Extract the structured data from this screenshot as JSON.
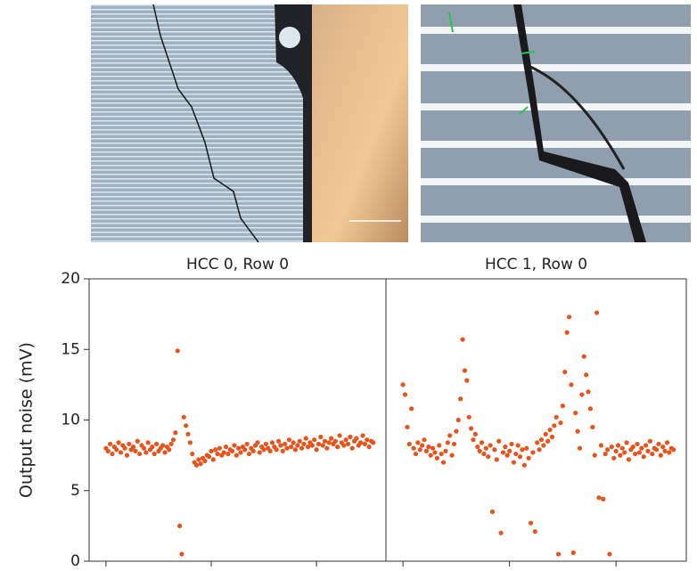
{
  "chart_data": [
    {
      "type": "scatter",
      "title": "HCC 0, Row 0",
      "ylabel": "Output noise (mV)",
      "color": "#e8531b",
      "xlim": [
        -8,
        133
      ],
      "xticks": [
        0,
        50,
        100
      ],
      "ylim": [
        0,
        20
      ],
      "yticks": [
        0,
        5,
        10,
        15,
        20
      ],
      "values": [
        8.0,
        7.8,
        8.3,
        7.6,
        8.1,
        7.9,
        8.4,
        7.7,
        8.2,
        8.0,
        7.5,
        8.3,
        7.9,
        8.1,
        7.8,
        8.5,
        7.6,
        8.2,
        8.0,
        7.7,
        8.4,
        7.9,
        8.1,
        7.6,
        8.3,
        7.8,
        8.0,
        8.2,
        7.7,
        8.1,
        7.9,
        8.3,
        8.6,
        9.1,
        14.9,
        2.5,
        0.5,
        10.2,
        9.6,
        9.0,
        8.4,
        7.6,
        7.0,
        6.8,
        7.2,
        6.9,
        7.3,
        7.1,
        7.5,
        7.4,
        7.8,
        7.2,
        7.9,
        7.6,
        8.0,
        7.5,
        7.7,
        8.1,
        7.6,
        7.9,
        7.8,
        8.2,
        7.5,
        8.0,
        7.7,
        8.1,
        7.9,
        8.3,
        7.6,
        8.0,
        7.8,
        8.2,
        8.4,
        7.7,
        8.1,
        7.9,
        8.3,
        8.0,
        7.8,
        8.4,
        8.1,
        7.9,
        8.5,
        8.2,
        7.8,
        8.3,
        8.0,
        8.6,
        8.1,
        8.4,
        7.9,
        8.2,
        8.5,
        8.0,
        8.3,
        8.7,
        8.1,
        8.4,
        8.2,
        8.6,
        7.9,
        8.3,
        8.8,
        8.2,
        8.5,
        8.0,
        8.4,
        8.7,
        8.3,
        8.5,
        8.1,
        8.9,
        8.4,
        8.2,
        8.6,
        8.3,
        8.8,
        8.0,
        8.5,
        8.7,
        8.2,
        8.4,
        8.9,
        8.3,
        8.6,
        8.1,
        8.5,
        8.4
      ]
    },
    {
      "type": "scatter",
      "title": "HCC 1, Row 0",
      "color": "#e8531b",
      "xlim": [
        -8,
        133
      ],
      "xticks": [
        0,
        50,
        100
      ],
      "ylim": [
        0,
        20
      ],
      "values": [
        12.5,
        11.8,
        9.5,
        8.3,
        10.8,
        8.0,
        7.6,
        8.4,
        7.9,
        8.2,
        8.6,
        7.8,
        8.1,
        7.5,
        8.0,
        7.7,
        7.3,
        8.2,
        7.6,
        7.0,
        7.8,
        8.4,
        8.9,
        7.5,
        8.3,
        9.2,
        10.0,
        11.5,
        15.7,
        13.5,
        12.8,
        10.2,
        9.4,
        8.6,
        9.0,
        8.1,
        7.8,
        8.4,
        7.6,
        8.0,
        7.4,
        8.2,
        3.5,
        7.9,
        7.2,
        8.5,
        2.0,
        7.7,
        8.1,
        7.5,
        7.8,
        8.3,
        7.0,
        7.6,
        8.2,
        7.4,
        7.9,
        6.8,
        8.0,
        7.3,
        2.7,
        7.7,
        2.1,
        8.4,
        7.9,
        8.6,
        8.2,
        9.0,
        8.5,
        9.3,
        8.8,
        9.6,
        10.2,
        0.5,
        9.8,
        11.0,
        13.4,
        16.2,
        17.3,
        12.5,
        0.6,
        10.5,
        9.2,
        8.0,
        11.8,
        14.5,
        13.2,
        12.0,
        10.8,
        9.5,
        7.5,
        17.6,
        4.5,
        8.2,
        4.4,
        7.6,
        7.9,
        0.5,
        8.1,
        7.3,
        7.8,
        8.2,
        7.5,
        8.0,
        7.7,
        8.4,
        7.2,
        7.9,
        8.1,
        7.6,
        8.3,
        7.7,
        8.0,
        7.4,
        8.2,
        7.8,
        8.5,
        7.6,
        8.0,
        7.9,
        8.3,
        7.5,
        8.1,
        7.8,
        8.4,
        7.7,
        8.0,
        7.9
      ]
    }
  ]
}
